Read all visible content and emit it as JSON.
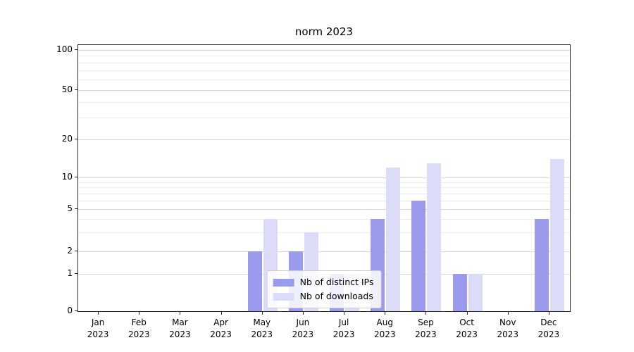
{
  "chart_data": {
    "type": "bar",
    "title": "norm 2023",
    "categories": [
      "Jan 2023",
      "Feb 2023",
      "Mar 2023",
      "Apr 2023",
      "May 2023",
      "Jun 2023",
      "Jul 2023",
      "Aug 2023",
      "Sep 2023",
      "Oct 2023",
      "Nov 2023",
      "Dec 2023"
    ],
    "series": [
      {
        "name": "Nb of distinct IPs",
        "color": "#9b9bee",
        "values": [
          0,
          0,
          0,
          0,
          2,
          2,
          1,
          4,
          6,
          1,
          0,
          4
        ]
      },
      {
        "name": "Nb of downloads",
        "color": "#dcdcf8",
        "values": [
          0,
          0,
          0,
          0,
          4,
          3,
          1,
          12,
          13,
          1,
          0,
          14
        ]
      }
    ],
    "xlabel": "",
    "ylabel": "",
    "yticks": [
      0,
      1,
      2,
      5,
      10,
      20,
      50,
      100
    ],
    "ylim": [
      0,
      110
    ],
    "scale": "symlog",
    "grid": "horizontal-light-gray",
    "legend_position": "lower-center-inside"
  }
}
